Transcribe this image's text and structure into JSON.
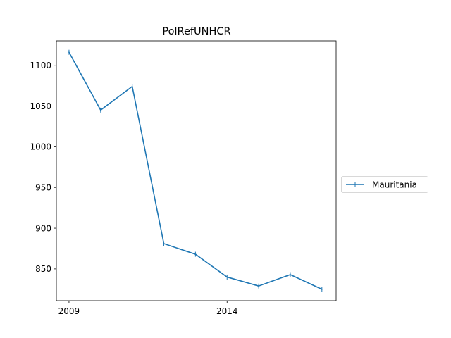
{
  "chart_data": {
    "type": "line",
    "title": "PolRefUNHCR",
    "xlabel": "",
    "ylabel": "",
    "x": [
      2009,
      2010,
      2011,
      2012,
      2013,
      2014,
      2015,
      2016,
      2017
    ],
    "x_ticks": [
      "2009",
      "2014"
    ],
    "x_tick_values": [
      2009,
      2014
    ],
    "y_ticks": [
      "850",
      "900",
      "950",
      "1000",
      "1050",
      "1100"
    ],
    "y_tick_values": [
      850,
      900,
      950,
      1000,
      1050,
      1100
    ],
    "xlim": [
      2008.6,
      2017.45
    ],
    "ylim": [
      811,
      1130
    ],
    "series": [
      {
        "name": "Mauritania",
        "values": [
          1116,
          1045,
          1074,
          881,
          868,
          840,
          829,
          843,
          825
        ],
        "color": "#1f77b4"
      }
    ],
    "legend_position": "right",
    "grid": false
  }
}
